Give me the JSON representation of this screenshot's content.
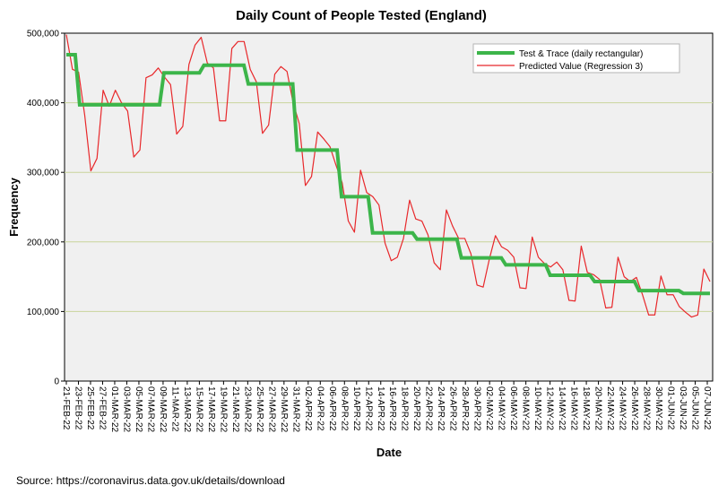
{
  "chart_data": {
    "type": "line",
    "title": "Daily Count of People Tested (England)",
    "xlabel": "Date",
    "ylabel": "Frequency",
    "ylim": [
      0,
      500000
    ],
    "yticks": [
      0,
      100000,
      200000,
      300000,
      400000,
      500000
    ],
    "ytick_labels": [
      "0",
      "100,000",
      "200,000",
      "300,000",
      "400,000",
      "500,000"
    ],
    "grid": "horizontal",
    "legend_position": "top-right",
    "x_tick_labels": [
      "21-FEB-22",
      "23-FEB-22",
      "25-FEB-22",
      "27-FEB-22",
      "01-MAR-22",
      "03-MAR-22",
      "05-MAR-22",
      "07-MAR-22",
      "09-MAR-22",
      "11-MAR-22",
      "13-MAR-22",
      "15-MAR-22",
      "17-MAR-22",
      "19-MAR-22",
      "21-MAR-22",
      "23-MAR-22",
      "25-MAR-22",
      "27-MAR-22",
      "29-MAR-22",
      "31-MAR-22",
      "02-APR-22",
      "04-APR-22",
      "06-APR-22",
      "08-APR-22",
      "10-APR-22",
      "12-APR-22",
      "14-APR-22",
      "16-APR-22",
      "18-APR-22",
      "20-APR-22",
      "22-APR-22",
      "24-APR-22",
      "26-APR-22",
      "28-APR-22",
      "30-APR-22",
      "02-MAY-22",
      "04-MAY-22",
      "06-MAY-22",
      "08-MAY-22",
      "10-MAY-22",
      "12-MAY-22",
      "14-MAY-22",
      "16-MAY-22",
      "18-MAY-22",
      "20-MAY-22",
      "22-MAY-22",
      "24-MAY-22",
      "26-MAY-22",
      "28-MAY-22",
      "30-MAY-22",
      "01-JUN-22",
      "03-JUN-22",
      "05-JUN-22",
      "07-JUN-22"
    ],
    "series": [
      {
        "name": "Test & Trace (daily rectangular)",
        "color": "#3cb54a",
        "style": "step",
        "values": [
          469000,
          469000,
          469000,
          397000,
          397000,
          397000,
          397000,
          397000,
          397000,
          397000,
          397000,
          397000,
          397000,
          397000,
          397000,
          397000,
          397000,
          397000,
          397000,
          397000,
          397000,
          397000,
          443000,
          443000,
          443000,
          443000,
          443000,
          443000,
          443000,
          443000,
          443000,
          454000,
          454000,
          454000,
          454000,
          454000,
          454000,
          454000,
          454000,
          454000,
          454000,
          427000,
          427000,
          427000,
          427000,
          427000,
          427000,
          427000,
          427000,
          427000,
          427000,
          427000,
          332000,
          332000,
          332000,
          332000,
          332000,
          332000,
          332000,
          332000,
          332000,
          332000,
          265000,
          265000,
          265000,
          265000,
          265000,
          265000,
          265000,
          213000,
          213000,
          213000,
          213000,
          213000,
          213000,
          213000,
          213000,
          213000,
          213000,
          204000,
          204000,
          204000,
          204000,
          204000,
          204000,
          204000,
          204000,
          204000,
          204000,
          177000,
          177000,
          177000,
          177000,
          177000,
          177000,
          177000,
          177000,
          177000,
          177000,
          167000,
          167000,
          167000,
          167000,
          167000,
          167000,
          167000,
          167000,
          167000,
          167000,
          152000,
          152000,
          152000,
          152000,
          152000,
          152000,
          152000,
          152000,
          152000,
          152000,
          143000,
          143000,
          143000,
          143000,
          143000,
          143000,
          143000,
          143000,
          143000,
          143000,
          130000,
          130000,
          130000,
          130000,
          130000,
          130000,
          130000,
          130000,
          130000,
          130000,
          126000,
          126000,
          126000,
          126000,
          126000,
          126000,
          126000
        ]
      },
      {
        "name": "Predicted Value (Regression 3)",
        "color": "#e8282b",
        "style": "line",
        "values": [
          498000,
          448000,
          444000,
          382000,
          302000,
          320000,
          418000,
          395000,
          418000,
          400000,
          388000,
          322000,
          332000,
          436000,
          440000,
          450000,
          437000,
          426000,
          355000,
          366000,
          455000,
          483000,
          494000,
          457000,
          450000,
          374000,
          374000,
          478000,
          488000,
          488000,
          448000,
          430000,
          356000,
          368000,
          441000,
          452000,
          445000,
          400000,
          370000,
          281000,
          294000,
          358000,
          348000,
          337000,
          310000,
          285000,
          230000,
          214000,
          303000,
          271000,
          265000,
          253000,
          198000,
          173000,
          178000,
          205000,
          260000,
          233000,
          230000,
          210000,
          170000,
          160000,
          246000,
          223000,
          205000,
          205000,
          183000,
          138000,
          135000,
          175000,
          209000,
          193000,
          188000,
          178000,
          134000,
          133000,
          207000,
          178000,
          169000,
          164000,
          171000,
          160000,
          116000,
          115000,
          194000,
          156000,
          153000,
          146000,
          105000,
          106000,
          178000,
          150000,
          143000,
          149000,
          124000,
          95000,
          95000,
          151000,
          124000,
          124000,
          107000,
          99000,
          92000,
          95000,
          161000,
          143000
        ]
      }
    ]
  },
  "source": "Source: https://coronavirus.data.gov.uk/details/download"
}
